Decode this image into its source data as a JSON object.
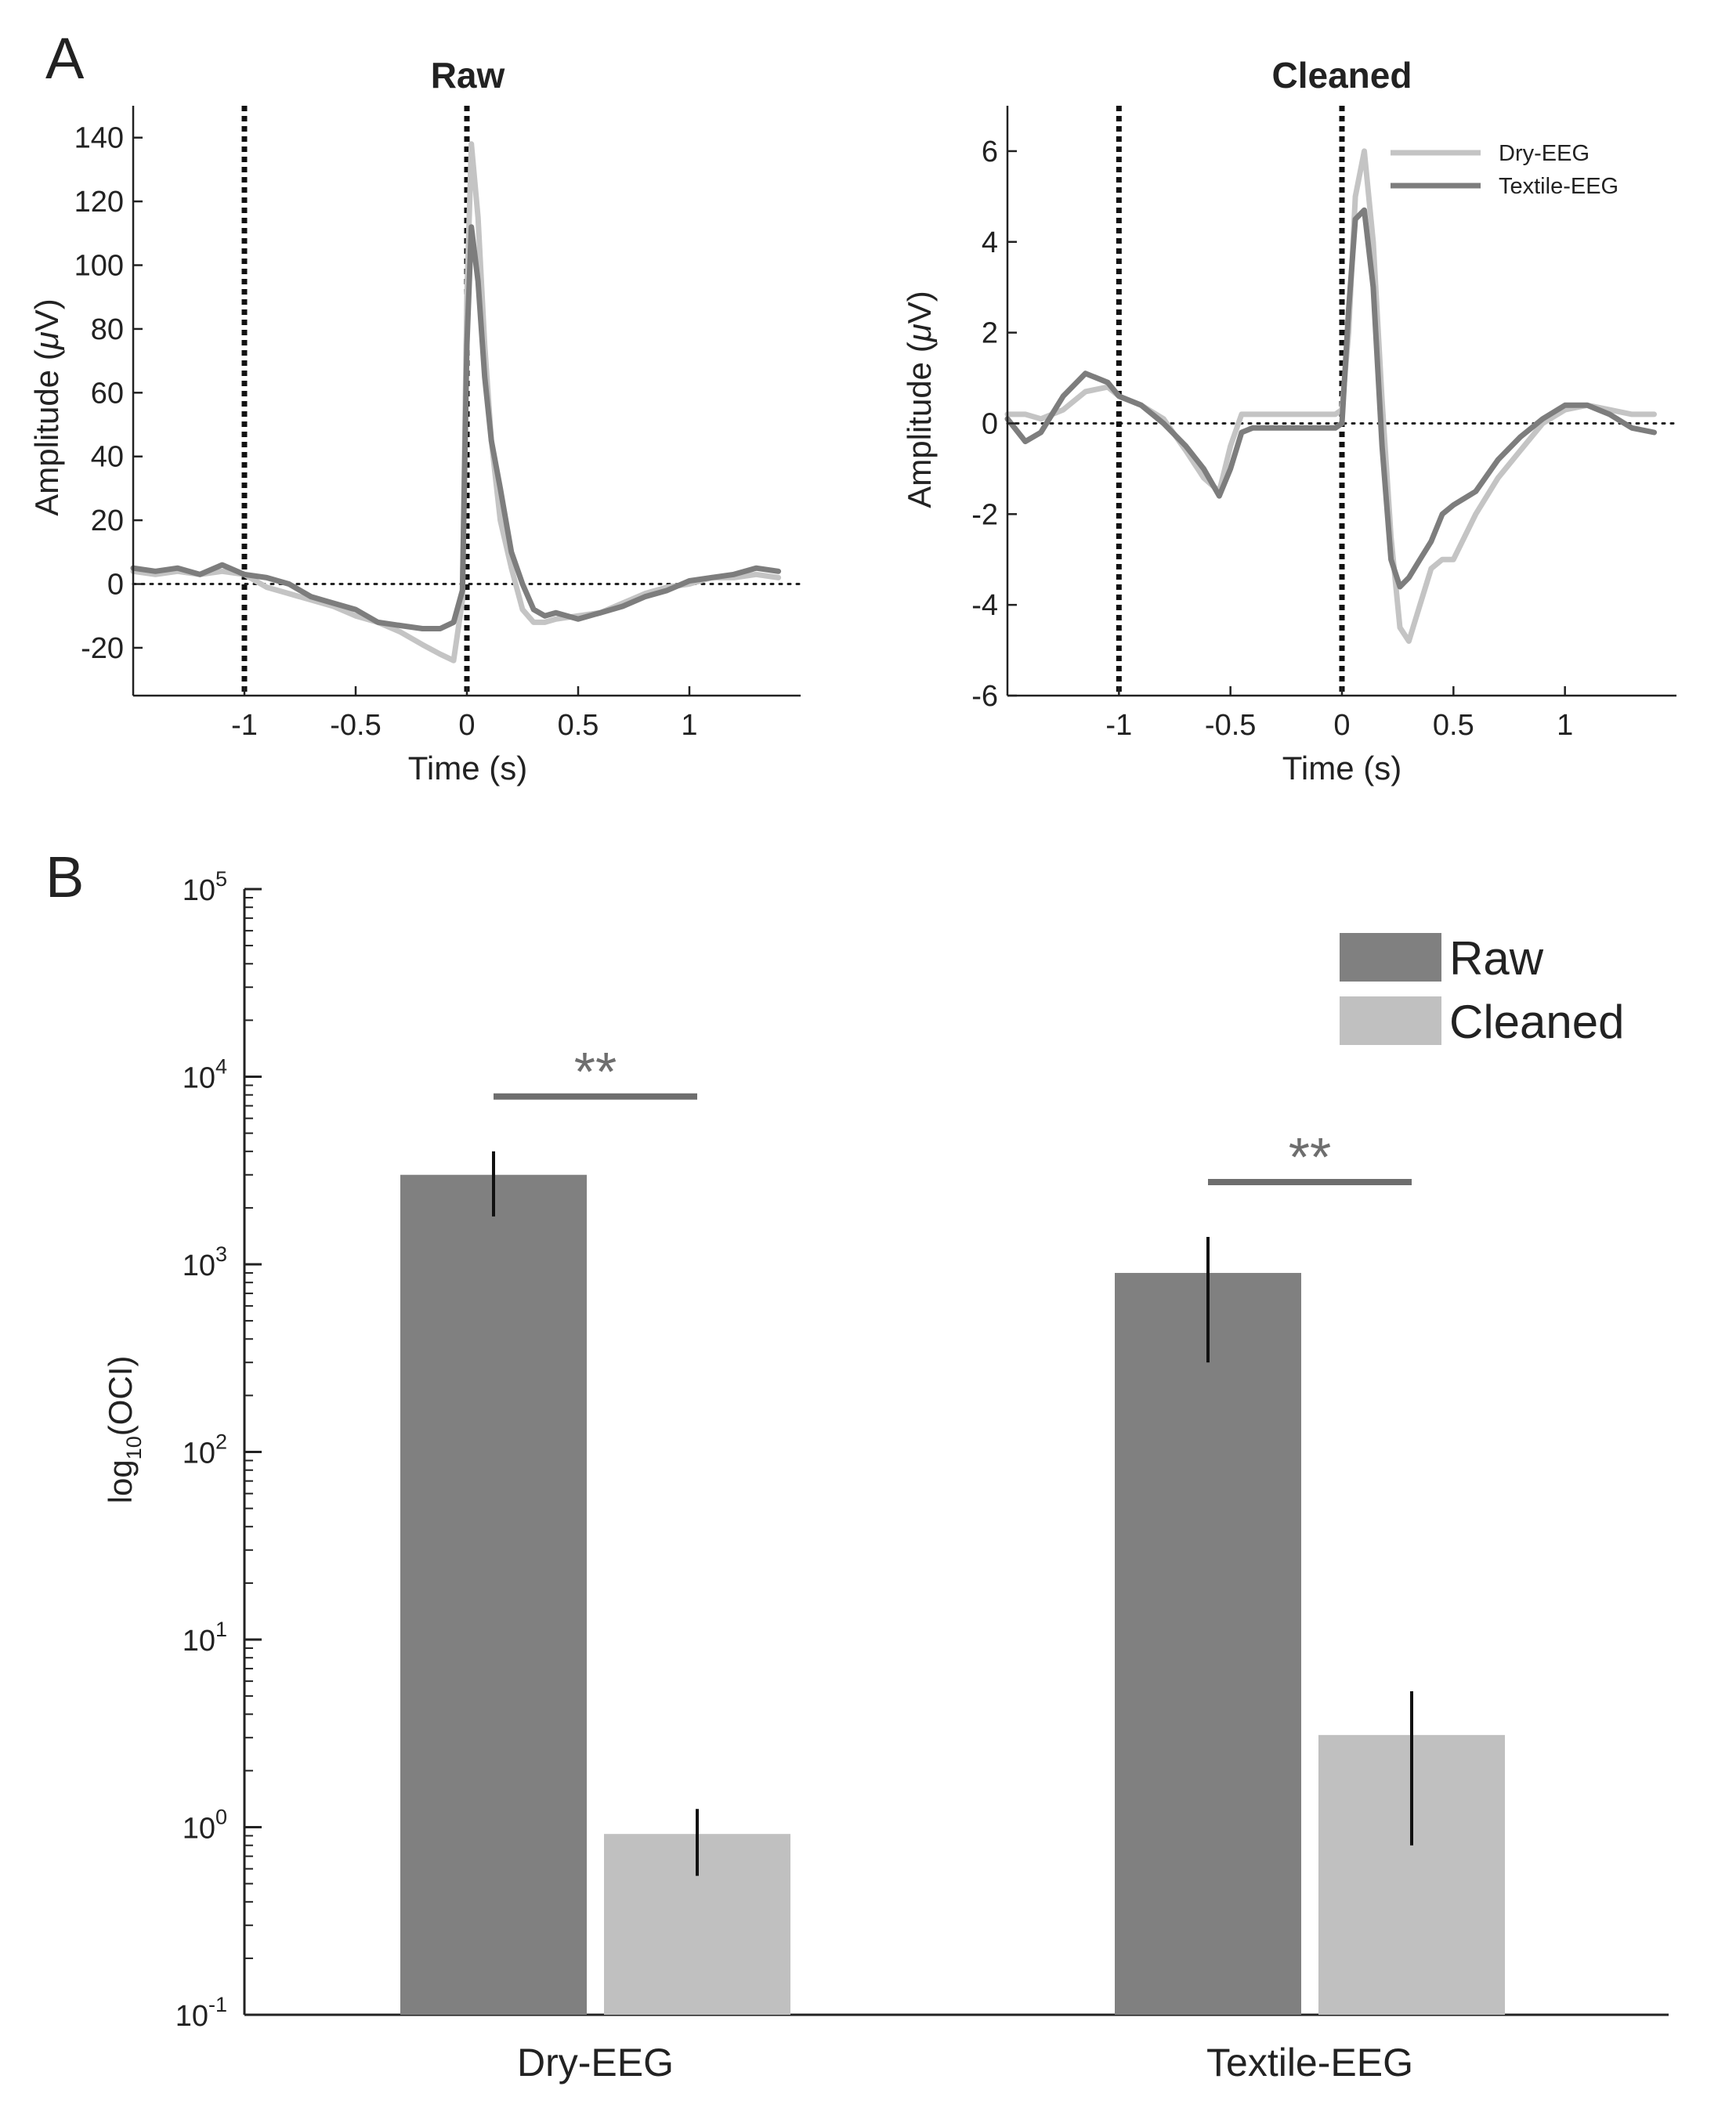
{
  "figure": {
    "panel_a_letter": "A",
    "panel_b_letter": "B"
  },
  "colors": {
    "dry": "#c4c4c4",
    "textile": "#7d7d7d",
    "raw_bar": "#808080",
    "cleaned_bar": "#c0c0c0",
    "axis": "#222222",
    "sig": "#6e6e6e"
  },
  "chart_data": [
    {
      "id": "raw",
      "type": "line",
      "title": "Raw",
      "xlabel": "Time (s)",
      "ylabel_prefix": "Amplitude (",
      "ylabel_mu": "μ",
      "ylabel_suffix": "V)",
      "xlim": [
        -1.5,
        1.5
      ],
      "ylim": [
        -35,
        150
      ],
      "xticks": [
        -1,
        -0.5,
        0,
        0.5,
        1
      ],
      "xtick_labels": [
        "-1",
        "-0.5",
        "0",
        "0.5",
        "1"
      ],
      "yticks": [
        -20,
        0,
        20,
        40,
        60,
        80,
        100,
        120,
        140
      ],
      "ytick_labels": [
        "-20",
        "0",
        "20",
        "40",
        "60",
        "80",
        "100",
        "120",
        "140"
      ],
      "vlines": [
        -1,
        0
      ],
      "hline": 0,
      "series": [
        {
          "name": "Dry-EEG",
          "color_key": "dry",
          "x": [
            -1.5,
            -1.4,
            -1.3,
            -1.2,
            -1.1,
            -1.0,
            -0.9,
            -0.8,
            -0.7,
            -0.6,
            -0.5,
            -0.4,
            -0.3,
            -0.2,
            -0.12,
            -0.06,
            -0.02,
            0.0,
            0.02,
            0.05,
            0.08,
            0.11,
            0.15,
            0.2,
            0.25,
            0.3,
            0.35,
            0.4,
            0.5,
            0.6,
            0.7,
            0.8,
            0.9,
            1.0,
            1.1,
            1.2,
            1.3,
            1.4
          ],
          "y": [
            4,
            3,
            4,
            3,
            4,
            3,
            -1,
            -3,
            -5,
            -7,
            -10,
            -12,
            -15,
            -19,
            -22,
            -24,
            -5,
            90,
            138,
            115,
            75,
            45,
            20,
            5,
            -8,
            -12,
            -12,
            -11,
            -10,
            -9,
            -6,
            -3,
            -1,
            0,
            2,
            2,
            3,
            2
          ]
        },
        {
          "name": "Textile-EEG",
          "color_key": "textile",
          "x": [
            -1.5,
            -1.4,
            -1.3,
            -1.2,
            -1.1,
            -1.0,
            -0.9,
            -0.8,
            -0.7,
            -0.6,
            -0.5,
            -0.4,
            -0.3,
            -0.2,
            -0.12,
            -0.06,
            -0.02,
            0.0,
            0.02,
            0.05,
            0.08,
            0.11,
            0.15,
            0.2,
            0.25,
            0.3,
            0.35,
            0.4,
            0.5,
            0.6,
            0.7,
            0.8,
            0.9,
            1.0,
            1.1,
            1.2,
            1.3,
            1.4
          ],
          "y": [
            5,
            4,
            5,
            3,
            6,
            3,
            2,
            0,
            -4,
            -6,
            -8,
            -12,
            -13,
            -14,
            -14,
            -12,
            -2,
            75,
            112,
            95,
            65,
            45,
            30,
            10,
            0,
            -8,
            -10,
            -9,
            -11,
            -9,
            -7,
            -4,
            -2,
            1,
            2,
            3,
            5,
            4
          ]
        }
      ]
    },
    {
      "id": "cleaned",
      "type": "line",
      "title": "Cleaned",
      "xlabel": "Time (s)",
      "ylabel_prefix": "Amplitude (",
      "ylabel_mu": "μ",
      "ylabel_suffix": "V)",
      "xlim": [
        -1.5,
        1.5
      ],
      "ylim": [
        -6,
        7
      ],
      "xticks": [
        -1,
        -0.5,
        0,
        0.5,
        1
      ],
      "xtick_labels": [
        "-1",
        "-0.5",
        "0",
        "0.5",
        "1"
      ],
      "yticks": [
        -6,
        -4,
        -2,
        0,
        2,
        4,
        6
      ],
      "ytick_labels": [
        "-6",
        "-4",
        "-2",
        "0",
        "2",
        "4",
        "6"
      ],
      "vlines": [
        -1,
        0
      ],
      "hline": 0,
      "legend": [
        "Dry-EEG",
        "Textile-EEG"
      ],
      "series": [
        {
          "name": "Dry-EEG",
          "color_key": "dry",
          "x": [
            -1.5,
            -1.42,
            -1.35,
            -1.25,
            -1.15,
            -1.05,
            -1.0,
            -0.9,
            -0.8,
            -0.7,
            -0.62,
            -0.55,
            -0.5,
            -0.45,
            -0.4,
            -0.3,
            -0.2,
            -0.1,
            -0.03,
            0.0,
            0.03,
            0.06,
            0.1,
            0.14,
            0.18,
            0.22,
            0.26,
            0.3,
            0.35,
            0.4,
            0.45,
            0.5,
            0.6,
            0.7,
            0.8,
            0.9,
            1.0,
            1.1,
            1.2,
            1.3,
            1.4
          ],
          "y": [
            0.2,
            0.2,
            0.1,
            0.3,
            0.7,
            0.8,
            0.6,
            0.4,
            0.1,
            -0.6,
            -1.2,
            -1.5,
            -0.5,
            0.2,
            0.2,
            0.2,
            0.2,
            0.2,
            0.2,
            0.3,
            2.0,
            5.0,
            6.0,
            4.0,
            0.5,
            -2.5,
            -4.5,
            -4.8,
            -4.0,
            -3.2,
            -3.0,
            -3.0,
            -2.0,
            -1.2,
            -0.6,
            0.0,
            0.3,
            0.4,
            0.3,
            0.2,
            0.2
          ]
        },
        {
          "name": "Textile-EEG",
          "color_key": "textile",
          "x": [
            -1.5,
            -1.42,
            -1.35,
            -1.25,
            -1.15,
            -1.05,
            -1.0,
            -0.9,
            -0.8,
            -0.7,
            -0.62,
            -0.55,
            -0.5,
            -0.45,
            -0.4,
            -0.3,
            -0.2,
            -0.1,
            -0.03,
            0.0,
            0.03,
            0.06,
            0.1,
            0.14,
            0.18,
            0.22,
            0.26,
            0.3,
            0.35,
            0.4,
            0.45,
            0.5,
            0.6,
            0.7,
            0.8,
            0.9,
            1.0,
            1.1,
            1.2,
            1.3,
            1.4
          ],
          "y": [
            0.1,
            -0.4,
            -0.2,
            0.6,
            1.1,
            0.9,
            0.6,
            0.4,
            0.0,
            -0.5,
            -1.0,
            -1.6,
            -1.0,
            -0.2,
            -0.1,
            -0.1,
            -0.1,
            -0.1,
            -0.1,
            0.0,
            2.5,
            4.5,
            4.7,
            3.0,
            -0.5,
            -3.0,
            -3.6,
            -3.4,
            -3.0,
            -2.6,
            -2.0,
            -1.8,
            -1.5,
            -0.8,
            -0.3,
            0.1,
            0.4,
            0.4,
            0.2,
            -0.1,
            -0.2
          ]
        }
      ]
    },
    {
      "id": "oci",
      "type": "bar",
      "scale": "log",
      "ylabel_base": "log",
      "ylabel_sub": "10",
      "ylabel_tail": "(OCI)",
      "categories": [
        "Dry-EEG",
        "Textile-EEG"
      ],
      "ylim_exp": [
        -1,
        5
      ],
      "ytick_exps": [
        -1,
        0,
        1,
        2,
        3,
        4,
        5
      ],
      "ytick_exp_labels": [
        "-1",
        "0",
        "1",
        "2",
        "3",
        "4",
        "5"
      ],
      "ytick_base": "10",
      "series": [
        {
          "name": "Raw",
          "color_key": "raw_bar",
          "values": [
            3000,
            900
          ],
          "err_low": [
            1800,
            300
          ],
          "err_high": [
            4000,
            1400
          ]
        },
        {
          "name": "Cleaned",
          "color_key": "cleaned_bar",
          "values": [
            0.92,
            3.1
          ],
          "err_low": [
            0.55,
            0.8
          ],
          "err_high": [
            1.25,
            5.3
          ]
        }
      ],
      "significance": [
        "**",
        "**"
      ],
      "legend": [
        "Raw",
        "Cleaned"
      ]
    }
  ]
}
